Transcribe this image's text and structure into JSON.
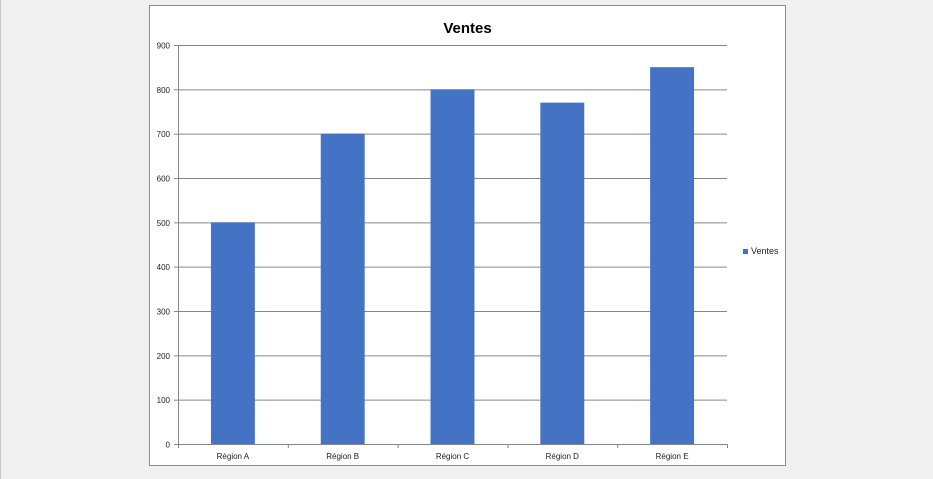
{
  "chart_data": {
    "type": "bar",
    "title": "Ventes",
    "categories": [
      "Région A",
      "Région B",
      "Région C",
      "Région D",
      "Région E"
    ],
    "series": [
      {
        "name": "Ventes",
        "values": [
          500,
          700,
          800,
          770,
          850
        ],
        "color": "#4472c4"
      }
    ],
    "ylim": [
      0,
      900
    ],
    "yticks": [
      0,
      100,
      200,
      300,
      400,
      500,
      600,
      700,
      800,
      900
    ],
    "grid": true,
    "legend_position": "right"
  }
}
